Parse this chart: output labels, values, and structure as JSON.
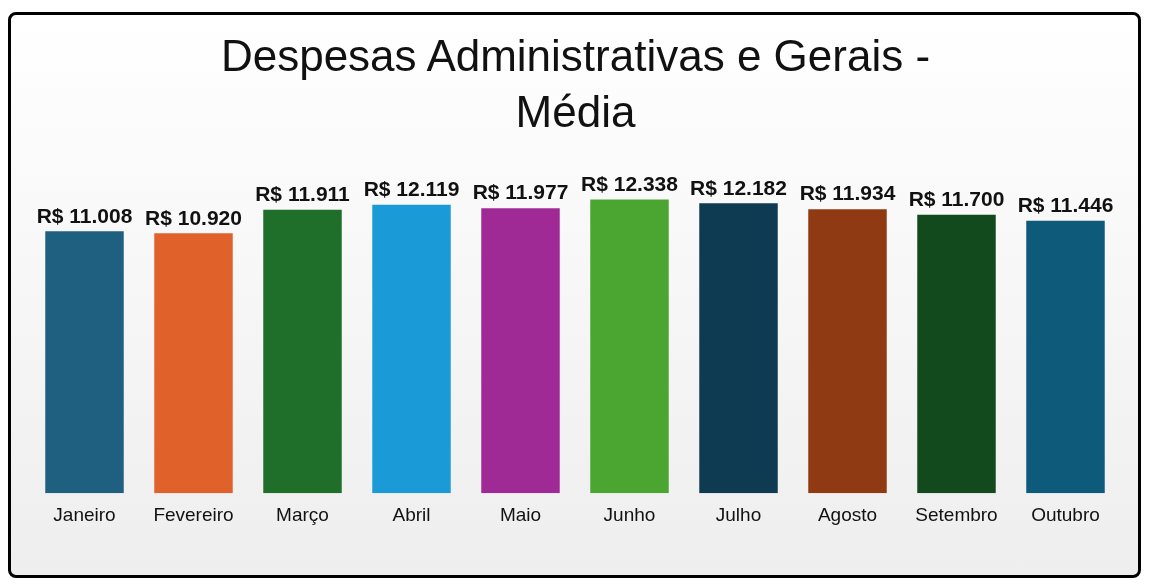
{
  "chart_data": {
    "type": "bar",
    "title": "Despesas Administrativas e Gerais - Média",
    "categories": [
      "Janeiro",
      "Fevereiro",
      "Março",
      "Abril",
      "Maio",
      "Junho",
      "Julho",
      "Agosto",
      "Setembro",
      "Outubro"
    ],
    "values": [
      11008,
      10920,
      11911,
      12119,
      11977,
      12338,
      12182,
      11934,
      11700,
      11446
    ],
    "value_labels": [
      "R$ 11.008",
      "R$ 10.920",
      "R$ 11.911",
      "R$ 12.119",
      "R$ 11.977",
      "R$ 12.338",
      "R$ 12.182",
      "R$ 11.934",
      "R$ 11.700",
      "R$ 11.446"
    ],
    "colors": [
      "#1f5f80",
      "#e0622a",
      "#1f6e2a",
      "#1a9ad6",
      "#a02a95",
      "#4aa630",
      "#0e3a52",
      "#8f3a12",
      "#124a1e",
      "#0d5a7a"
    ],
    "tick_labels": "x",
    "grid": false,
    "legend": false
  }
}
